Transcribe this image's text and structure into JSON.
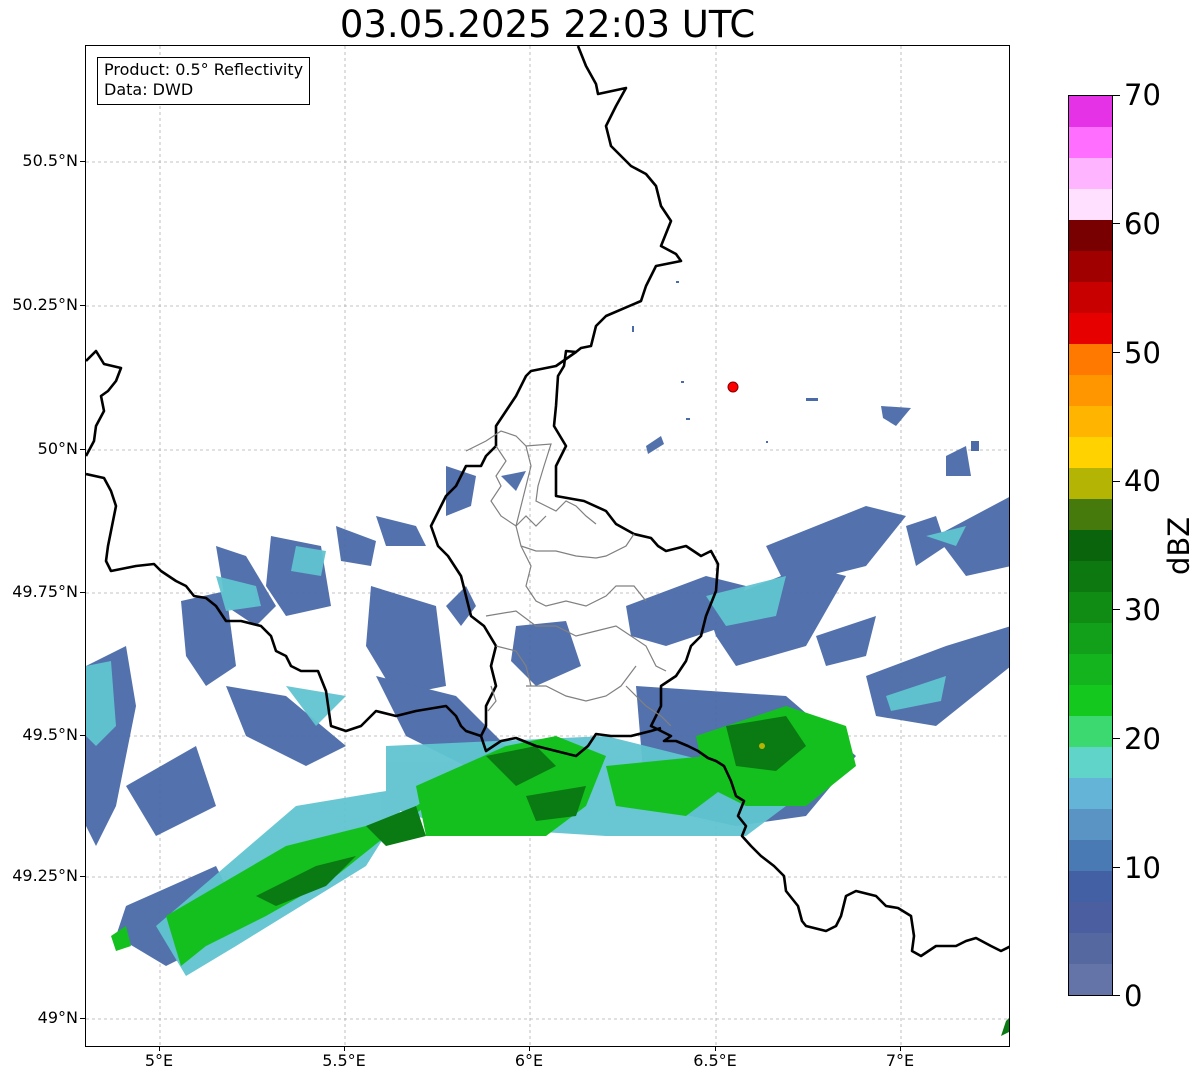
{
  "title": "03.05.2025 22:03 UTC",
  "info_box": {
    "product": "Product: 0.5° Reflectivity",
    "data": "Data: DWD"
  },
  "y_ticks": [
    "50.5°N",
    "50.25°N",
    "50°N",
    "49.75°N",
    "49.5°N",
    "49.25°N",
    "49°N"
  ],
  "x_ticks": [
    "5°E",
    "5.5°E",
    "6°E",
    "6.5°E",
    "7°E"
  ],
  "marker": {
    "label": "radar-site",
    "color": "#ff0000",
    "lon": 6.55,
    "lat": 50.11
  },
  "colorbar": {
    "label": "dBZ",
    "tick_labels": [
      "0",
      "10",
      "20",
      "30",
      "40",
      "50",
      "60",
      "70"
    ],
    "colors": [
      "#6474a8",
      "#5668a0",
      "#4a5ea0",
      "#4460a4",
      "#4a7ab4",
      "#5a94c4",
      "#64b4d8",
      "#60d4c8",
      "#3cd870",
      "#14c81e",
      "#14b41e",
      "#12a01a",
      "#108c14",
      "#0e7810",
      "#0a640c",
      "#467a0c",
      "#b4b404",
      "#ffd200",
      "#ffb400",
      "#ff9600",
      "#ff7800",
      "#e60000",
      "#c80000",
      "#a00000",
      "#780000",
      "#ffe0ff",
      "#ffb4ff",
      "#ff6eff",
      "#e632e6"
    ]
  }
}
